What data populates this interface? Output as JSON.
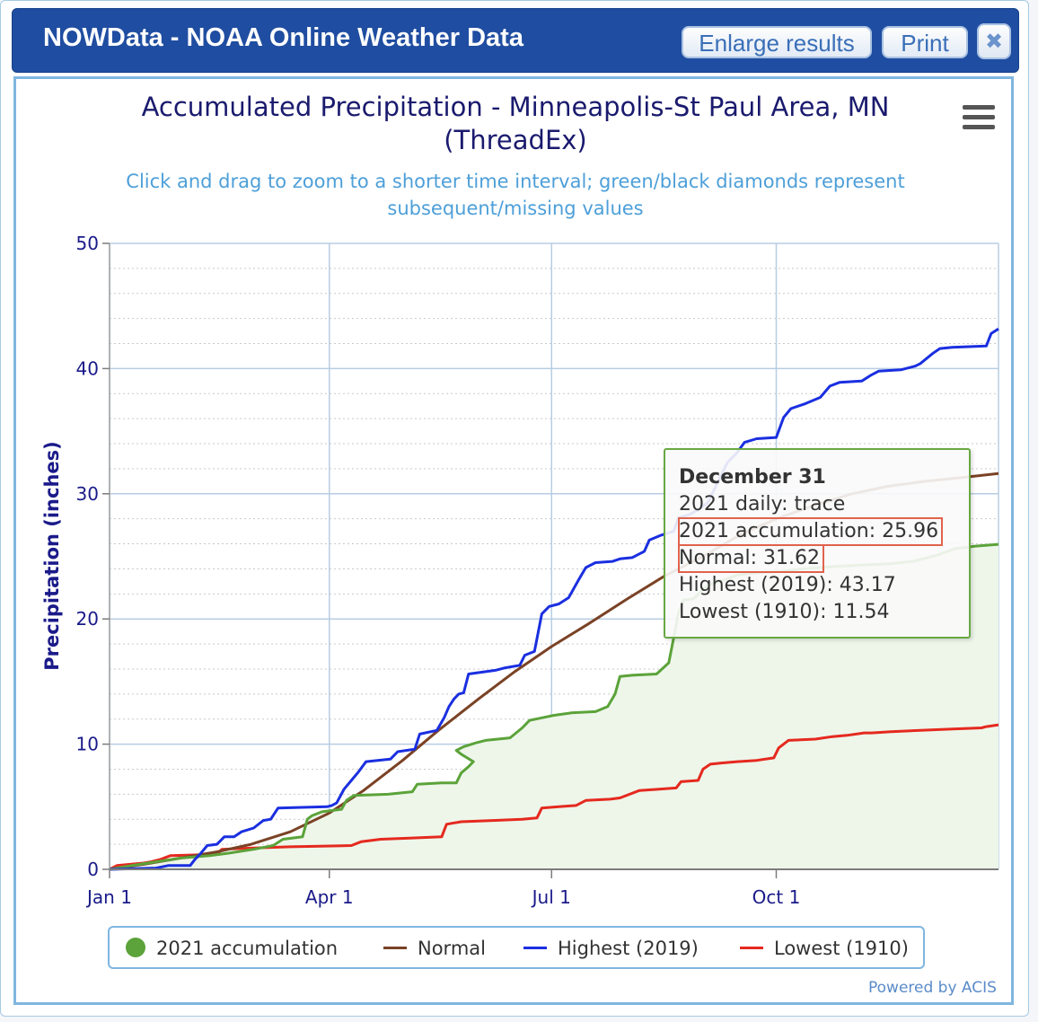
{
  "window": {
    "title": "NOWData - NOAA Online Weather Data",
    "enlarge_label": "Enlarge results",
    "print_label": "Print",
    "close_symbol": "✖"
  },
  "chart": {
    "title_line1": "Accumulated Precipitation - Minneapolis-St Paul Area, MN",
    "title_line2": "(ThreadEx)",
    "subtitle_line1": "Click and drag to zoom to a shorter time interval; green/black diamonds represent",
    "subtitle_line2": "subsequent/missing values",
    "ylabel": "Precipitation (inches)",
    "credits": "Powered by ACIS"
  },
  "tooltip": {
    "date": "December 31",
    "daily": "2021 daily: trace",
    "accum": "2021 accumulation: 25.96",
    "normal": "Normal: 31.62",
    "highest": "Highest (2019): 43.17",
    "lowest": "Lowest (1910): 11.54"
  },
  "legend": {
    "accum": "2021 accumulation",
    "normal": "Normal",
    "highest": "Highest (2019)",
    "lowest": "Lowest (1910)"
  },
  "colors": {
    "accum": "#5ba33a",
    "accum_fill": "#eef6ea",
    "normal": "#7a4225",
    "highest": "#1a2fe0",
    "lowest": "#e5291f"
  },
  "chart_data": {
    "type": "line",
    "xlim": [
      1,
      365
    ],
    "ylim": [
      0,
      50
    ],
    "yticks": [
      0,
      10,
      20,
      30,
      40,
      50
    ],
    "xticks": [
      {
        "day": 1,
        "label": "Jan 1"
      },
      {
        "day": 91,
        "label": "Apr 1"
      },
      {
        "day": 182,
        "label": "Jul 1"
      },
      {
        "day": 274,
        "label": "Oct 1"
      }
    ],
    "series": [
      {
        "name": "2021 accumulation",
        "key": "accum",
        "points": [
          [
            1,
            0
          ],
          [
            10,
            0.3
          ],
          [
            20,
            0.6
          ],
          [
            30,
            0.9
          ],
          [
            42,
            1.1
          ],
          [
            50,
            1.3
          ],
          [
            60,
            1.6
          ],
          [
            68,
            1.9
          ],
          [
            72,
            2.4
          ],
          [
            80,
            2.6
          ],
          [
            82,
            4.0
          ],
          [
            84,
            4.3
          ],
          [
            88,
            4.6
          ],
          [
            96,
            4.8
          ],
          [
            98,
            5.5
          ],
          [
            101,
            5.9
          ],
          [
            115,
            6.0
          ],
          [
            125,
            6.2
          ],
          [
            127,
            6.8
          ],
          [
            137,
            6.9
          ],
          [
            143,
            6.9
          ],
          [
            145,
            7.7
          ],
          [
            148,
            8.2
          ],
          [
            150,
            8.6
          ],
          [
            145,
            9.2
          ],
          [
            143,
            9.5
          ],
          [
            146,
            9.8
          ],
          [
            151,
            10.1
          ],
          [
            155,
            10.3
          ],
          [
            165,
            10.5
          ],
          [
            170,
            11.3
          ],
          [
            173,
            11.9
          ],
          [
            178,
            12.1
          ],
          [
            183,
            12.3
          ],
          [
            190,
            12.5
          ],
          [
            200,
            12.6
          ],
          [
            205,
            13.0
          ],
          [
            208,
            14.0
          ],
          [
            210,
            15.4
          ],
          [
            215,
            15.5
          ],
          [
            225,
            15.6
          ],
          [
            230,
            16.5
          ],
          [
            232,
            18.5
          ],
          [
            234,
            20.5
          ],
          [
            236,
            21.5
          ],
          [
            240,
            21.6
          ],
          [
            246,
            22.7
          ],
          [
            251,
            23.0
          ],
          [
            258,
            23.5
          ],
          [
            262,
            23.6
          ],
          [
            267,
            23.7
          ],
          [
            276,
            23.8
          ],
          [
            285,
            24.0
          ],
          [
            298,
            24.2
          ],
          [
            308,
            24.3
          ],
          [
            320,
            24.4
          ],
          [
            330,
            24.6
          ],
          [
            340,
            25.1
          ],
          [
            347,
            25.6
          ],
          [
            355,
            25.8
          ],
          [
            365,
            25.96
          ]
        ]
      },
      {
        "name": "Normal",
        "key": "normal",
        "points": [
          [
            1,
            0
          ],
          [
            15,
            0.4
          ],
          [
            30,
            0.9
          ],
          [
            45,
            1.4
          ],
          [
            59,
            2.0
          ],
          [
            75,
            3.0
          ],
          [
            91,
            4.5
          ],
          [
            105,
            6.3
          ],
          [
            121,
            8.7
          ],
          [
            135,
            11.0
          ],
          [
            152,
            13.6
          ],
          [
            167,
            15.8
          ],
          [
            182,
            17.8
          ],
          [
            197,
            19.6
          ],
          [
            213,
            21.6
          ],
          [
            228,
            23.4
          ],
          [
            244,
            25.0
          ],
          [
            259,
            26.7
          ],
          [
            274,
            28.0
          ],
          [
            290,
            29.1
          ],
          [
            305,
            30.0
          ],
          [
            320,
            30.6
          ],
          [
            335,
            31.0
          ],
          [
            350,
            31.3
          ],
          [
            365,
            31.62
          ]
        ]
      },
      {
        "name": "Highest (2019)",
        "key": "highest",
        "points": [
          [
            1,
            0
          ],
          [
            20,
            0.1
          ],
          [
            25,
            0.3
          ],
          [
            34,
            0.3
          ],
          [
            36,
            0.8
          ],
          [
            38,
            1.2
          ],
          [
            41,
            1.9
          ],
          [
            45,
            2.0
          ],
          [
            48,
            2.6
          ],
          [
            52,
            2.6
          ],
          [
            55,
            3.0
          ],
          [
            60,
            3.3
          ],
          [
            64,
            3.9
          ],
          [
            67,
            4.0
          ],
          [
            70,
            4.9
          ],
          [
            90,
            5.0
          ],
          [
            92,
            5.1
          ],
          [
            94,
            5.3
          ],
          [
            97,
            6.4
          ],
          [
            100,
            7.1
          ],
          [
            103,
            7.8
          ],
          [
            106,
            8.6
          ],
          [
            116,
            8.8
          ],
          [
            119,
            9.4
          ],
          [
            126,
            9.6
          ],
          [
            128,
            10.8
          ],
          [
            135,
            11.1
          ],
          [
            138,
            12.1
          ],
          [
            140,
            13.0
          ],
          [
            142,
            13.6
          ],
          [
            144,
            14.0
          ],
          [
            146,
            14.1
          ],
          [
            148,
            15.6
          ],
          [
            159,
            15.9
          ],
          [
            163,
            16.1
          ],
          [
            169,
            16.3
          ],
          [
            171,
            17.1
          ],
          [
            175,
            17.4
          ],
          [
            178,
            20.4
          ],
          [
            181,
            21.0
          ],
          [
            185,
            21.2
          ],
          [
            189,
            21.7
          ],
          [
            193,
            23.1
          ],
          [
            196,
            24.1
          ],
          [
            200,
            24.5
          ],
          [
            207,
            24.6
          ],
          [
            210,
            24.8
          ],
          [
            215,
            24.9
          ],
          [
            220,
            25.4
          ],
          [
            222,
            26.3
          ],
          [
            227,
            26.7
          ],
          [
            232,
            27.0
          ],
          [
            234,
            28.1
          ],
          [
            238,
            28.3
          ],
          [
            242,
            28.7
          ],
          [
            246,
            29.3
          ],
          [
            250,
            30.9
          ],
          [
            254,
            32.5
          ],
          [
            258,
            33.3
          ],
          [
            261,
            34.1
          ],
          [
            266,
            34.4
          ],
          [
            274,
            34.5
          ],
          [
            277,
            36.1
          ],
          [
            280,
            36.8
          ],
          [
            286,
            37.2
          ],
          [
            292,
            37.7
          ],
          [
            296,
            38.6
          ],
          [
            300,
            38.9
          ],
          [
            309,
            39.0
          ],
          [
            313,
            39.5
          ],
          [
            316,
            39.8
          ],
          [
            325,
            39.9
          ],
          [
            331,
            40.2
          ],
          [
            333,
            40.4
          ],
          [
            338,
            41.2
          ],
          [
            341,
            41.6
          ],
          [
            346,
            41.7
          ],
          [
            360,
            41.8
          ],
          [
            362,
            42.8
          ],
          [
            365,
            43.17
          ]
        ]
      },
      {
        "name": "Lowest (1910)",
        "key": "lowest",
        "points": [
          [
            1,
            0
          ],
          [
            4,
            0.3
          ],
          [
            15,
            0.5
          ],
          [
            18,
            0.6
          ],
          [
            22,
            0.8
          ],
          [
            26,
            1.1
          ],
          [
            45,
            1.2
          ],
          [
            47,
            1.6
          ],
          [
            60,
            1.7
          ],
          [
            75,
            1.8
          ],
          [
            100,
            1.9
          ],
          [
            104,
            2.2
          ],
          [
            112,
            2.4
          ],
          [
            125,
            2.5
          ],
          [
            137,
            2.6
          ],
          [
            139,
            3.6
          ],
          [
            145,
            3.8
          ],
          [
            158,
            3.9
          ],
          [
            170,
            4.0
          ],
          [
            176,
            4.1
          ],
          [
            178,
            4.9
          ],
          [
            185,
            5.0
          ],
          [
            192,
            5.1
          ],
          [
            196,
            5.5
          ],
          [
            206,
            5.6
          ],
          [
            210,
            5.7
          ],
          [
            218,
            6.3
          ],
          [
            226,
            6.4
          ],
          [
            233,
            6.5
          ],
          [
            235,
            7.0
          ],
          [
            242,
            7.1
          ],
          [
            244,
            8.0
          ],
          [
            247,
            8.4
          ],
          [
            252,
            8.5
          ],
          [
            258,
            8.6
          ],
          [
            266,
            8.7
          ],
          [
            273,
            8.9
          ],
          [
            275,
            9.7
          ],
          [
            279,
            10.3
          ],
          [
            290,
            10.4
          ],
          [
            297,
            10.6
          ],
          [
            303,
            10.7
          ],
          [
            310,
            10.9
          ],
          [
            313,
            10.9
          ],
          [
            321,
            11.0
          ],
          [
            333,
            11.1
          ],
          [
            345,
            11.2
          ],
          [
            358,
            11.3
          ],
          [
            360,
            11.4
          ],
          [
            365,
            11.54
          ]
        ]
      }
    ]
  }
}
